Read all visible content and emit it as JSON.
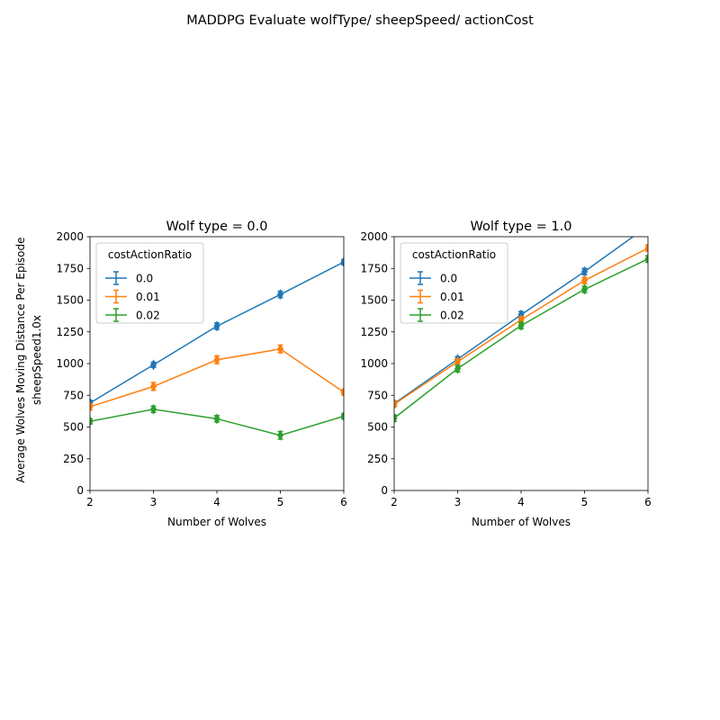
{
  "figure": {
    "suptitle": "MADDPG Evaluate wolfType/ sheepSpeed/ actionCost",
    "ylabel_line1": "Average Wolves Moving Distance Per Episode",
    "ylabel_line2": "sheepSpeed1.0x"
  },
  "chart_data": [
    {
      "type": "line",
      "title": "Wolf type = 0.0",
      "xlabel": "Number of Wolves",
      "ylabel": "",
      "x": [
        2,
        3,
        4,
        5,
        6
      ],
      "xlim": [
        2,
        6
      ],
      "ylim": [
        0,
        2000
      ],
      "xticks": [
        "2",
        "3",
        "4",
        "5",
        "6"
      ],
      "yticks": [
        "0",
        "250",
        "500",
        "750",
        "1000",
        "1250",
        "1500",
        "1750",
        "2000"
      ],
      "grid": false,
      "legend": {
        "title": "costActionRatio",
        "position": "top-left"
      },
      "series": [
        {
          "name": "0.0",
          "color": "#1f77b4",
          "values": [
            690,
            990,
            1295,
            1545,
            1800
          ],
          "err": [
            20,
            20,
            25,
            25,
            20
          ]
        },
        {
          "name": "0.01",
          "color": "#ff7f0e",
          "values": [
            660,
            820,
            1030,
            1115,
            775
          ],
          "err": [
            25,
            30,
            30,
            30,
            20
          ]
        },
        {
          "name": "0.02",
          "color": "#2ca02c",
          "values": [
            545,
            640,
            565,
            435,
            585
          ],
          "err": [
            20,
            25,
            25,
            30,
            20
          ]
        }
      ]
    },
    {
      "type": "line",
      "title": "Wolf type = 1.0",
      "xlabel": "Number of Wolves",
      "ylabel": "",
      "x": [
        2,
        3,
        4,
        5,
        6
      ],
      "xlim": [
        2,
        6
      ],
      "ylim": [
        0,
        2000
      ],
      "xticks": [
        "2",
        "3",
        "4",
        "5",
        "6"
      ],
      "yticks": [
        "0",
        "250",
        "500",
        "750",
        "1000",
        "1250",
        "1500",
        "1750",
        "2000"
      ],
      "grid": false,
      "legend": {
        "title": "costActionRatio",
        "position": "top-left"
      },
      "series": [
        {
          "name": "0.0",
          "color": "#1f77b4",
          "values": [
            685,
            1035,
            1385,
            1725,
            2085
          ],
          "err": [
            20,
            20,
            25,
            25,
            25
          ]
        },
        {
          "name": "0.01",
          "color": "#ff7f0e",
          "values": [
            680,
            1015,
            1345,
            1655,
            1910
          ],
          "err": [
            20,
            20,
            25,
            25,
            25
          ]
        },
        {
          "name": "0.02",
          "color": "#2ca02c",
          "values": [
            570,
            960,
            1300,
            1585,
            1825
          ],
          "err": [
            25,
            25,
            25,
            25,
            25
          ]
        }
      ]
    }
  ]
}
